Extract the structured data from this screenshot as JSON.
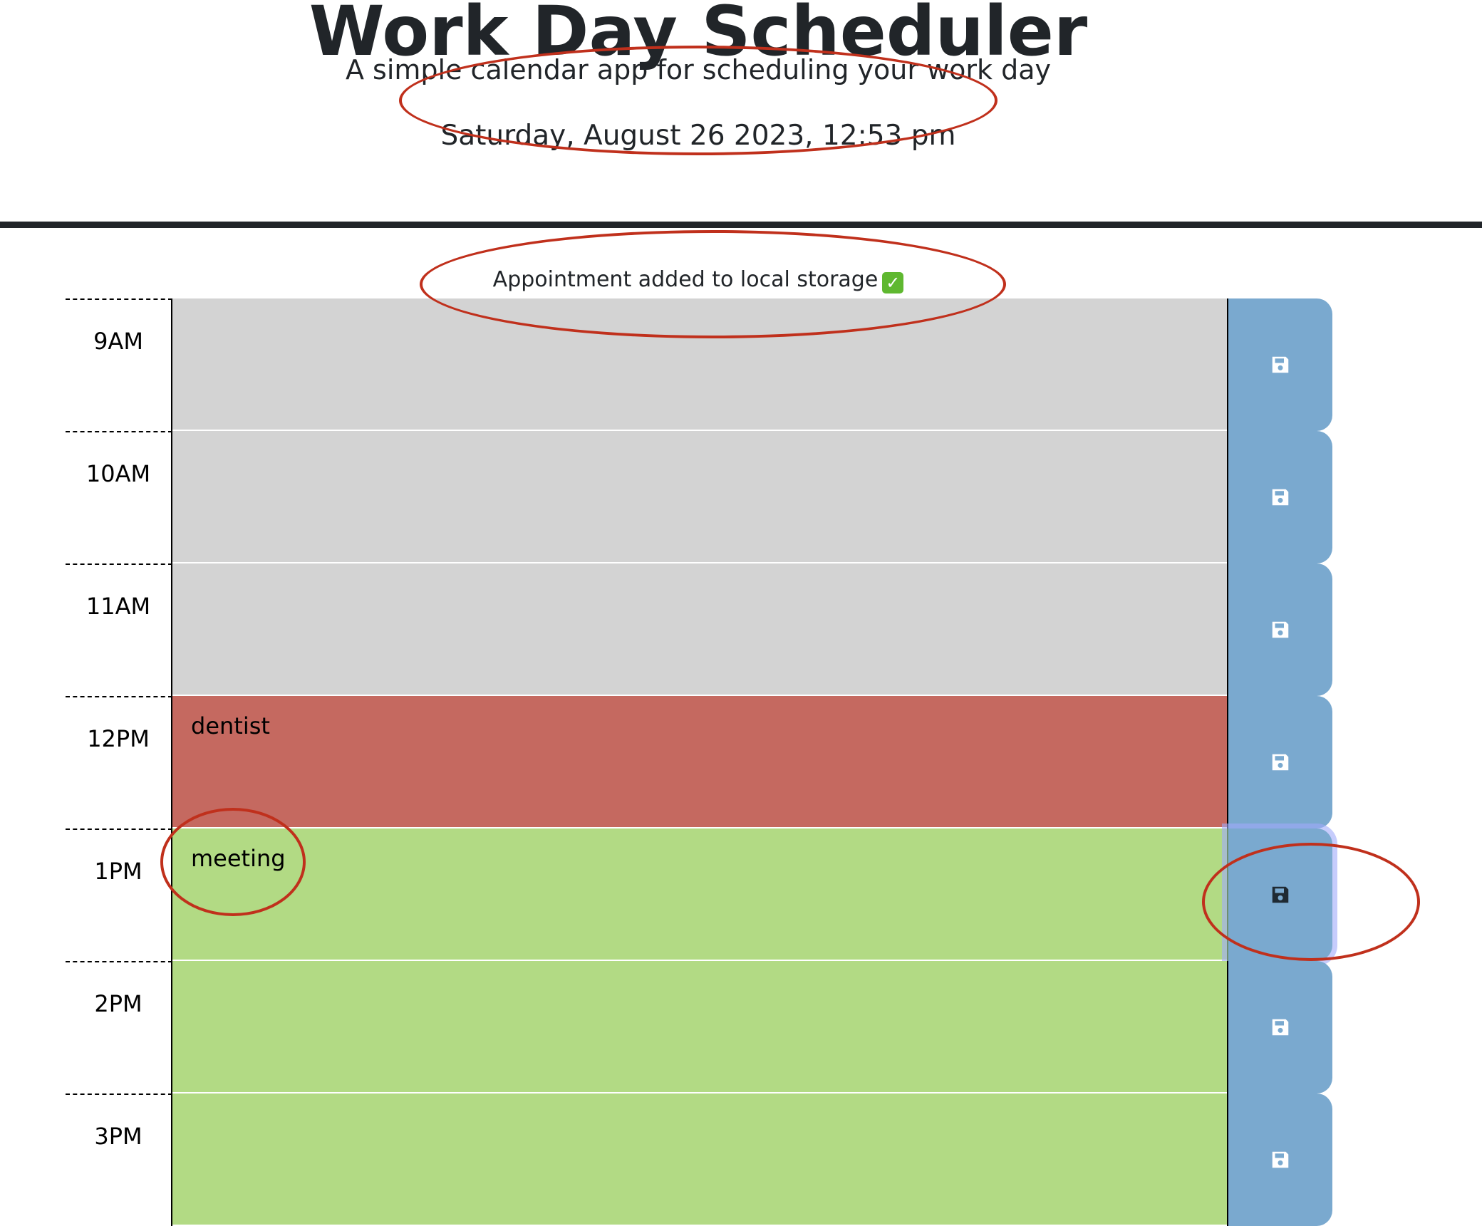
{
  "header": {
    "title": "Work Day Scheduler",
    "lead": "A simple calendar app for scheduling your work day",
    "current_day": "Saturday, August 26 2023, 12:53 pm"
  },
  "toast": {
    "message": "Appointment added to local storage",
    "icon": "check-mark-icon"
  },
  "time_blocks": [
    {
      "hour": "9AM",
      "text": "",
      "state": "past",
      "save_icon": "floppy-disk-icon"
    },
    {
      "hour": "10AM",
      "text": "",
      "state": "past",
      "save_icon": "floppy-disk-icon"
    },
    {
      "hour": "11AM",
      "text": "",
      "state": "past",
      "save_icon": "floppy-disk-icon"
    },
    {
      "hour": "12PM",
      "text": "dentist",
      "state": "present",
      "save_icon": "floppy-disk-icon"
    },
    {
      "hour": "1PM",
      "text": "meeting",
      "state": "future",
      "save_icon": "floppy-disk-icon",
      "focused": true
    },
    {
      "hour": "2PM",
      "text": "",
      "state": "future",
      "save_icon": "floppy-disk-icon"
    },
    {
      "hour": "3PM",
      "text": "",
      "state": "future",
      "save_icon": "floppy-disk-icon"
    }
  ],
  "colors": {
    "past": "#d3d3d3",
    "present": "#c56960",
    "future": "#b2da84",
    "save_button": "#7aa9cf",
    "annotation": "#c0301c"
  }
}
